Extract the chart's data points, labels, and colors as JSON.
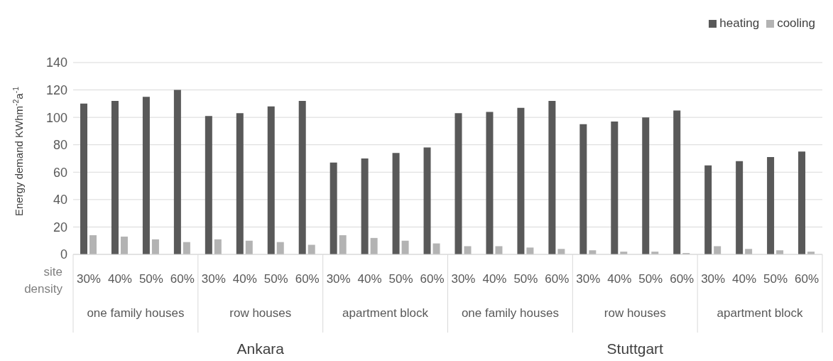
{
  "chart_data": {
    "type": "bar",
    "ylabel": "Energy demand KWhm$^{-2}$a$^{-1}$",
    "categories": [
      "30%",
      "40%",
      "50%",
      "60%",
      "30%",
      "40%",
      "50%",
      "60%",
      "30%",
      "40%",
      "50%",
      "60%",
      "30%",
      "40%",
      "50%",
      "60%",
      "30%",
      "40%",
      "50%",
      "60%",
      "30%",
      "40%",
      "50%",
      "60%"
    ],
    "series": [
      {
        "name": "heating",
        "color": "#595959",
        "values": [
          110,
          112,
          115,
          120,
          101,
          103,
          108,
          112,
          67,
          70,
          74,
          78,
          103,
          104,
          107,
          112,
          95,
          97,
          100,
          105,
          65,
          68,
          71,
          75
        ]
      },
      {
        "name": "cooling",
        "color": "#b3b3b3",
        "values": [
          14,
          13,
          11,
          9,
          11,
          10,
          9,
          7,
          14,
          12,
          10,
          8,
          6,
          6,
          5,
          4,
          3,
          2,
          2,
          1,
          6,
          4,
          3,
          2
        ]
      }
    ],
    "ylim": [
      0,
      140
    ],
    "yticks": [
      0,
      20,
      40,
      60,
      80,
      100,
      120,
      140
    ],
    "grid": "y",
    "legend": "top right",
    "annotations": [
      "site density",
      "one family houses",
      "row houses",
      "apartment block",
      "one family houses",
      "row houses",
      "apartment block",
      "Ankara",
      "Stuttgart"
    ]
  }
}
